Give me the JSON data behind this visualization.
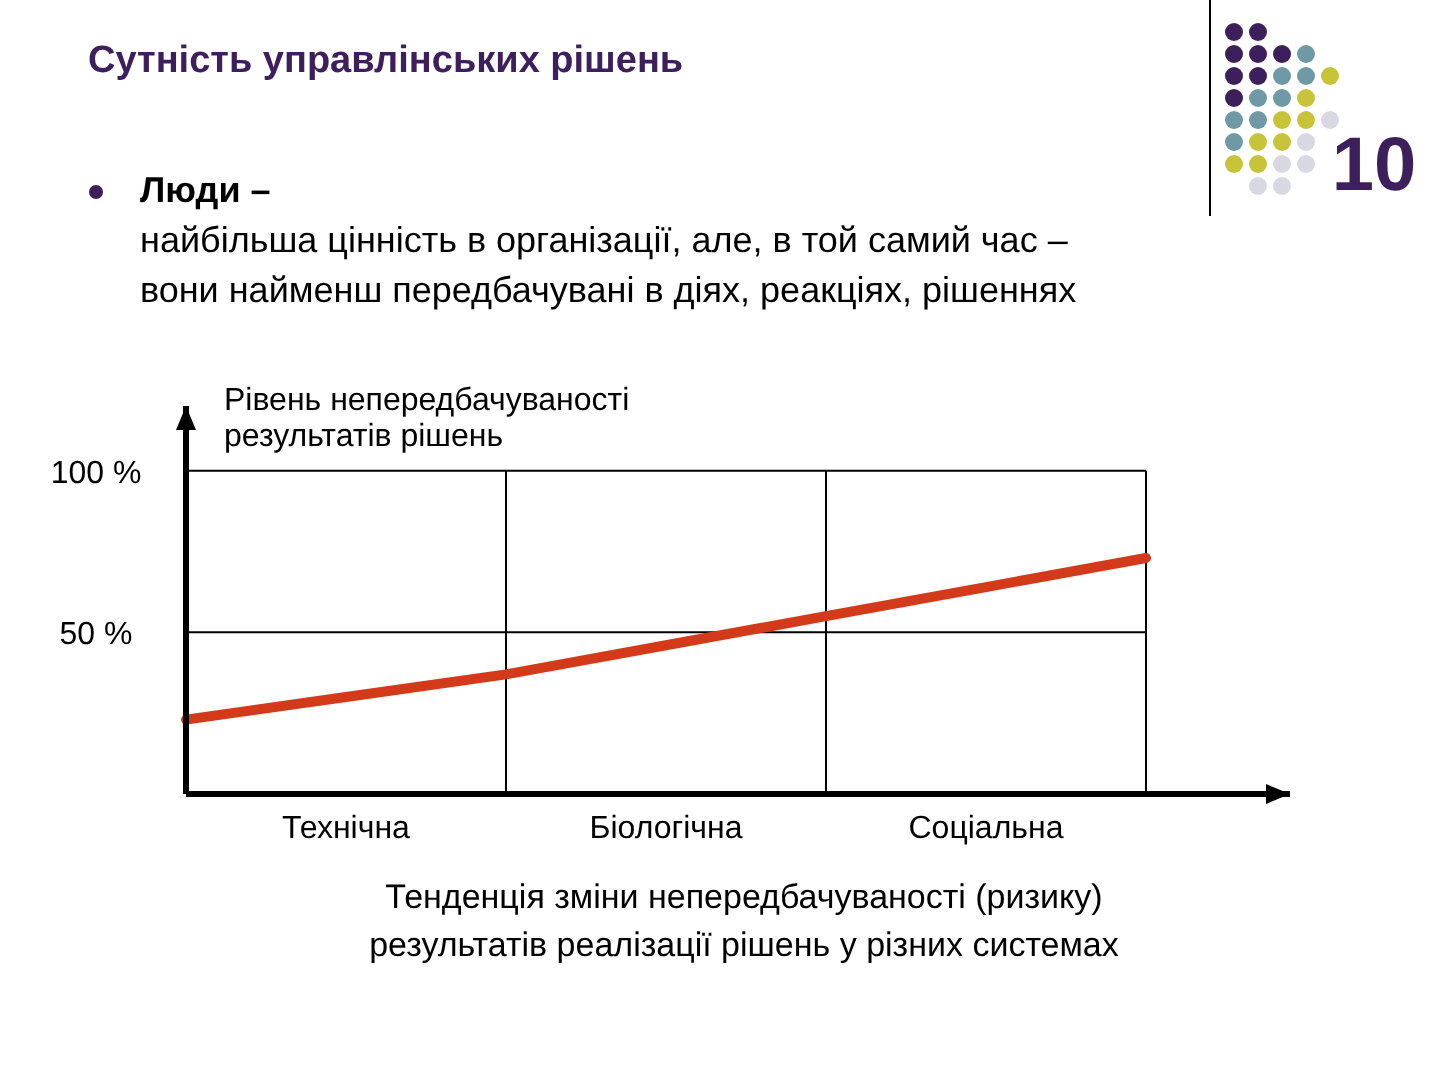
{
  "chart_data": {
    "type": "line",
    "title": "Сутність управлінських рішень",
    "subtitle": "Люди –\nнайбільша цінність в організації, але, в той самий час –\nвони найменш передбачувані в діях, реакціях, рішеннях",
    "ylabel": "Рівень непередбачуваності\nрезультатів рішень",
    "xlabel": "Тенденція зміни непередбачуваності (ризику)\nрезультатів реалізації рішень у різних системах",
    "annotations": [
      "10"
    ],
    "categories": [
      null,
      "Технічна",
      null,
      "Біологічна",
      null,
      "Соціальна",
      null
    ],
    "series": [
      {
        "color": "#d23a1a",
        "values": [
          23,
          30,
          37,
          46,
          55,
          64,
          73
        ]
      }
    ],
    "ylim": [
      0,
      120
    ],
    "yticks": [
      {
        "value": 50,
        "label": "50 %"
      },
      {
        "value": 100,
        "label": "100 %"
      }
    ],
    "grid": true,
    "marker": "none",
    "line_style": "solid"
  }
}
